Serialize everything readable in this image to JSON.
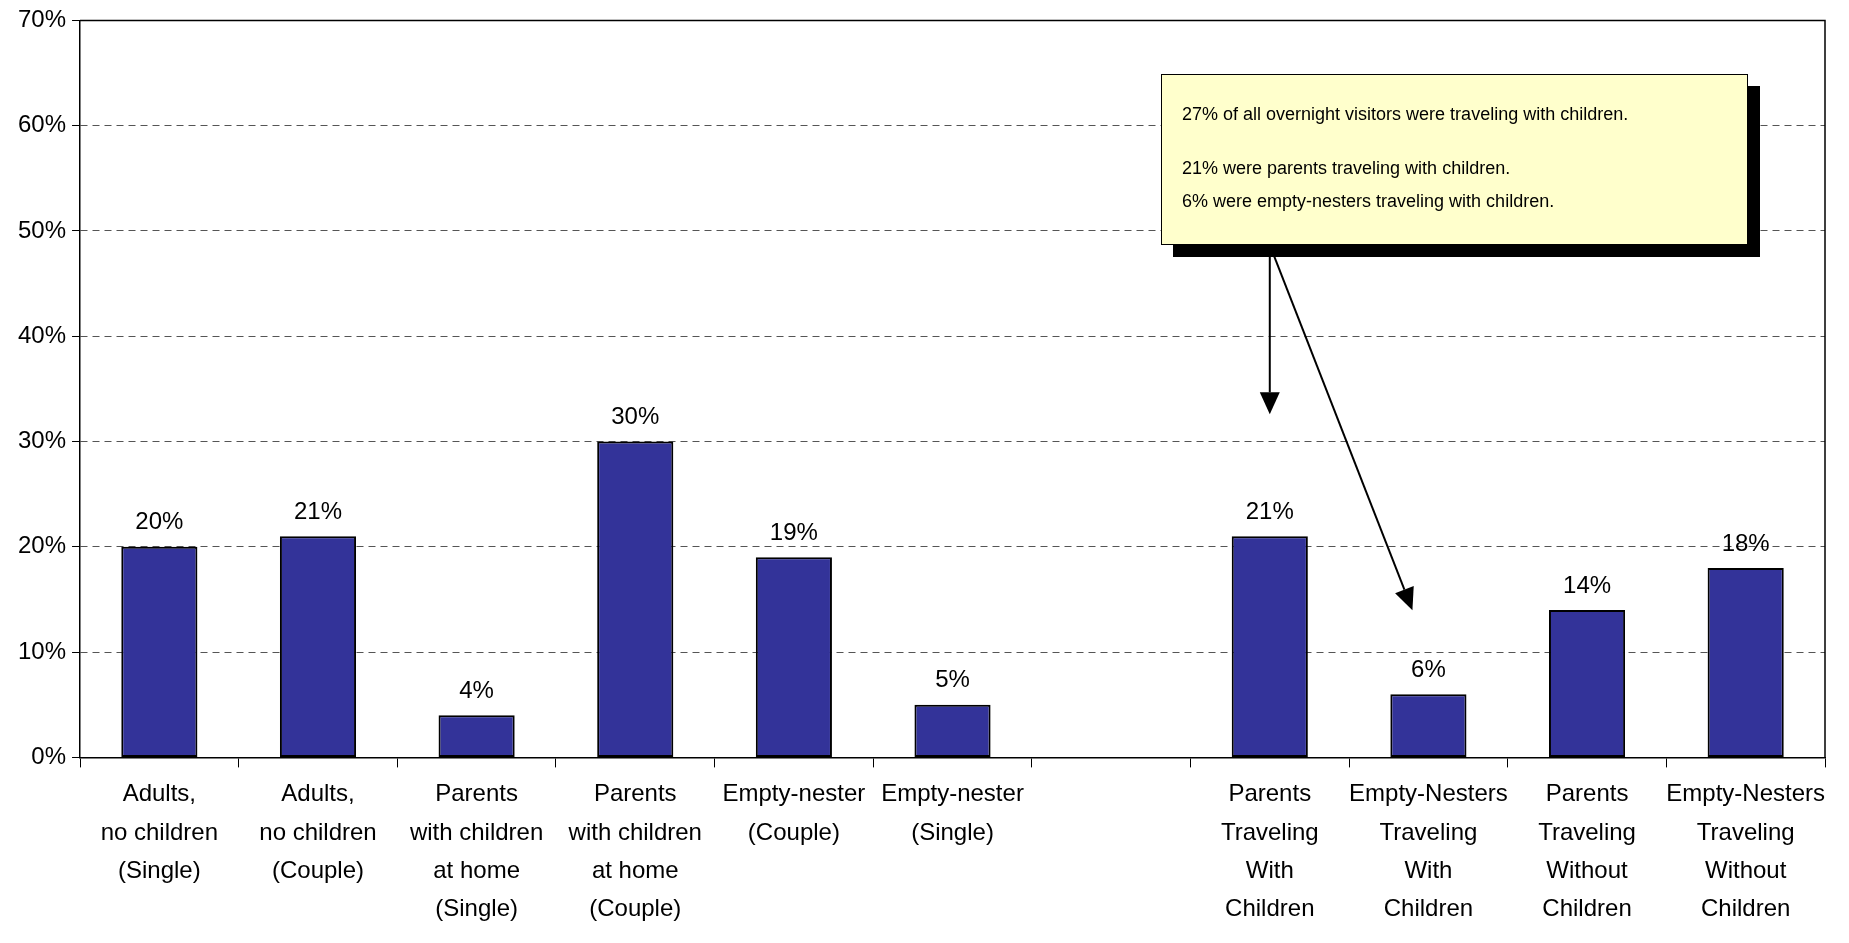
{
  "chart_data": {
    "type": "bar",
    "categories": [
      "Adults,\nno children\n(Single)",
      "Adults,\nno children\n(Couple)",
      "Parents\nwith children\nat home\n(Single)",
      "Parents\nwith children\nat home\n(Couple)",
      "Empty-nester\n(Couple)",
      "Empty-nester\n(Single)",
      null,
      "Parents\nTraveling\nWith\nChildren",
      "Empty-Nesters\nTraveling\nWith\nChildren",
      "Parents\nTraveling\nWithout\nChildren",
      "Empty-Nesters\nTraveling\nWithout\nChildren"
    ],
    "values": [
      20,
      21,
      4,
      30,
      19,
      5,
      null,
      21,
      6,
      14,
      18
    ],
    "value_labels": [
      "20%",
      "21%",
      "4%",
      "30%",
      "19%",
      "5%",
      null,
      "21%",
      "6%",
      "14%",
      "18%"
    ],
    "color": "#333399",
    "ylim": [
      0,
      70
    ],
    "yticks": [
      {
        "value": 0,
        "label": "0%"
      },
      {
        "value": 10,
        "label": "10%"
      },
      {
        "value": 20,
        "label": "20%"
      },
      {
        "value": 30,
        "label": "30%"
      },
      {
        "value": 40,
        "label": "40%"
      },
      {
        "value": 50,
        "label": "50%"
      },
      {
        "value": 60,
        "label": "60%"
      },
      {
        "value": 70,
        "label": "70%"
      }
    ],
    "grid": "y",
    "annotations": [
      "27% of all overnight visitors were traveling with children.",
      "21% were parents traveling with children.\n6% were empty-nesters traveling with children."
    ]
  }
}
